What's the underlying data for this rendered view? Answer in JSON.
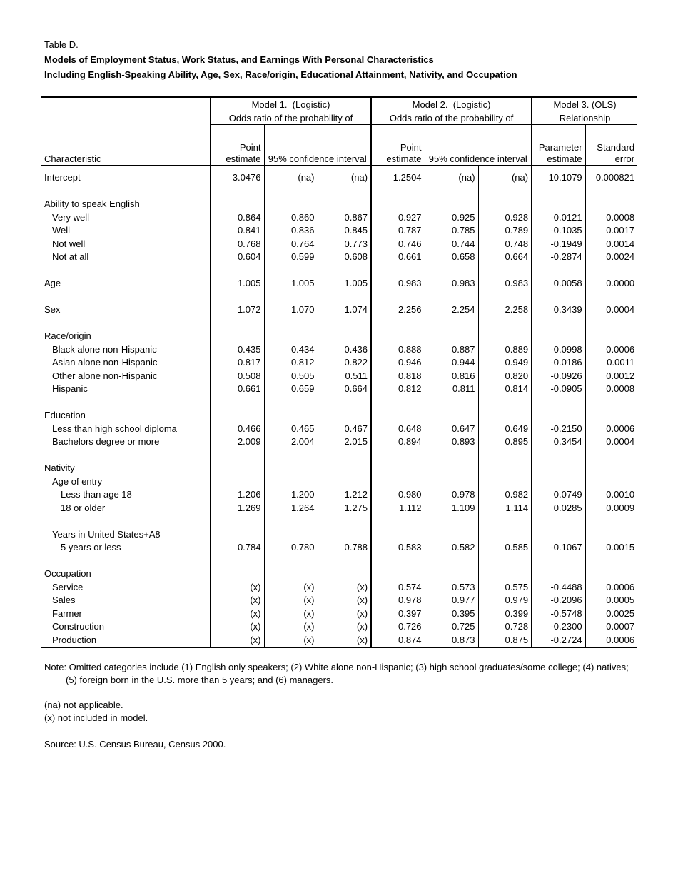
{
  "title": {
    "label": "Table D.",
    "line1": "Models of Employment Status, Work Status, and Earnings With Personal Characteristics",
    "line2": "Including English-Speaking Ability, Age, Sex, Race/origin, Educational Attainment, Nativity, and Occupation"
  },
  "table": {
    "header": {
      "model1": "Model 1.  (Logistic)",
      "model2": "Model 2.  (Logistic)",
      "model3": "Model 3. (OLS)",
      "sub1": "Odds ratio of the probability of",
      "sub2": "Odds ratio of the probability of",
      "sub3": "Relationship",
      "characteristic": "Characteristic",
      "point_estimate": "Point estimate",
      "ci": "95% confidence interval",
      "parameter_estimate": "Parameter estimate",
      "standard_error": "Standard error"
    },
    "rows": [
      {
        "label": "Intercept",
        "bold": true,
        "indent": 0,
        "values": [
          "3.0476",
          "(na)",
          "(na)",
          "1.2504",
          "(na)",
          "(na)",
          "10.1079",
          "0.000821"
        ]
      },
      {
        "blank": true
      },
      {
        "label": "Ability to speak English",
        "bold": true,
        "indent": 0
      },
      {
        "label": "Very well",
        "indent": 1,
        "values": [
          "0.864",
          "0.860",
          "0.867",
          "0.927",
          "0.925",
          "0.928",
          "-0.0121",
          "0.0008"
        ]
      },
      {
        "label": "Well",
        "indent": 1,
        "values": [
          "0.841",
          "0.836",
          "0.845",
          "0.787",
          "0.785",
          "0.789",
          "-0.1035",
          "0.0017"
        ]
      },
      {
        "label": "Not well",
        "indent": 1,
        "values": [
          "0.768",
          "0.764",
          "0.773",
          "0.746",
          "0.744",
          "0.748",
          "-0.1949",
          "0.0014"
        ]
      },
      {
        "label": "Not at all",
        "indent": 1,
        "values": [
          "0.604",
          "0.599",
          "0.608",
          "0.661",
          "0.658",
          "0.664",
          "-0.2874",
          "0.0024"
        ]
      },
      {
        "blank": true
      },
      {
        "label": "Age",
        "bold": true,
        "indent": 0,
        "values": [
          "1.005",
          "1.005",
          "1.005",
          "0.983",
          "0.983",
          "0.983",
          "0.0058",
          "0.0000"
        ]
      },
      {
        "blank": true
      },
      {
        "label": "Sex",
        "bold": true,
        "indent": 0,
        "values": [
          "1.072",
          "1.070",
          "1.074",
          "2.256",
          "2.254",
          "2.258",
          "0.3439",
          "0.0004"
        ]
      },
      {
        "blank": true
      },
      {
        "label": "Race/origin",
        "bold": true,
        "indent": 0
      },
      {
        "label": "Black alone non-Hispanic",
        "indent": 1,
        "values": [
          "0.435",
          "0.434",
          "0.436",
          "0.888",
          "0.887",
          "0.889",
          "-0.0998",
          "0.0006"
        ]
      },
      {
        "label": "Asian alone non-Hispanic",
        "indent": 1,
        "values": [
          "0.817",
          "0.812",
          "0.822",
          "0.946",
          "0.944",
          "0.949",
          "-0.0186",
          "0.0011"
        ]
      },
      {
        "label": "Other alone non-Hispanic",
        "indent": 1,
        "values": [
          "0.508",
          "0.505",
          "0.511",
          "0.818",
          "0.816",
          "0.820",
          "-0.0926",
          "0.0012"
        ]
      },
      {
        "label": "Hispanic",
        "indent": 1,
        "values": [
          "0.661",
          "0.659",
          "0.664",
          "0.812",
          "0.811",
          "0.814",
          "-0.0905",
          "0.0008"
        ]
      },
      {
        "blank": true
      },
      {
        "label": "Education",
        "bold": true,
        "indent": 0
      },
      {
        "label": "Less than high school diploma",
        "indent": 1,
        "values": [
          "0.466",
          "0.465",
          "0.467",
          "0.648",
          "0.647",
          "0.649",
          "-0.2150",
          "0.0006"
        ]
      },
      {
        "label": "Bachelors degree or more",
        "indent": 1,
        "values": [
          "2.009",
          "2.004",
          "2.015",
          "0.894",
          "0.893",
          "0.895",
          "0.3454",
          "0.0004"
        ]
      },
      {
        "blank": true
      },
      {
        "label": "Nativity",
        "bold": true,
        "indent": 0
      },
      {
        "label": "Age of entry",
        "bold": true,
        "indent": 1
      },
      {
        "label": "Less than age 18",
        "indent": 2,
        "values": [
          "1.206",
          "1.200",
          "1.212",
          "0.980",
          "0.978",
          "0.982",
          "0.0749",
          "0.0010"
        ]
      },
      {
        "label": "18 or older",
        "indent": 2,
        "values": [
          "1.269",
          "1.264",
          "1.275",
          "1.112",
          "1.109",
          "1.114",
          "0.0285",
          "0.0009"
        ]
      },
      {
        "blank": true
      },
      {
        "label": "Years in United States+A8",
        "bold": true,
        "indent": 1
      },
      {
        "label": "5 years or less",
        "indent": 2,
        "values": [
          "0.784",
          "0.780",
          "0.788",
          "0.583",
          "0.582",
          "0.585",
          "-0.1067",
          "0.0015"
        ]
      },
      {
        "blank": true
      },
      {
        "label": "Occupation",
        "bold": true,
        "indent": 0
      },
      {
        "label": "Service",
        "indent": 1,
        "values": [
          "(x)",
          "(x)",
          "(x)",
          "0.574",
          "0.573",
          "0.575",
          "-0.4488",
          "0.0006"
        ]
      },
      {
        "label": "Sales",
        "indent": 1,
        "values": [
          "(x)",
          "(x)",
          "(x)",
          "0.978",
          "0.977",
          "0.979",
          "-0.2096",
          "0.0005"
        ]
      },
      {
        "label": "Farmer",
        "indent": 1,
        "values": [
          "(x)",
          "(x)",
          "(x)",
          "0.397",
          "0.395",
          "0.399",
          "-0.5748",
          "0.0025"
        ]
      },
      {
        "label": "Construction",
        "indent": 1,
        "values": [
          "(x)",
          "(x)",
          "(x)",
          "0.726",
          "0.725",
          "0.728",
          "-0.2300",
          "0.0007"
        ]
      },
      {
        "label": "Production",
        "indent": 1,
        "values": [
          "(x)",
          "(x)",
          "(x)",
          "0.874",
          "0.873",
          "0.875",
          "-0.2724",
          "0.0006"
        ]
      }
    ]
  },
  "notes": {
    "omitted": "Note: Omitted categories include (1) English only speakers; (2) White alone non-Hispanic; (3) high school graduates/some college; (4) natives; (5) foreign born in the U.S. more than 5 years; and (6) managers.",
    "na": "(na) not applicable.",
    "x": "(x) not included in model.",
    "source": "Source: U.S. Census Bureau, Census 2000."
  }
}
